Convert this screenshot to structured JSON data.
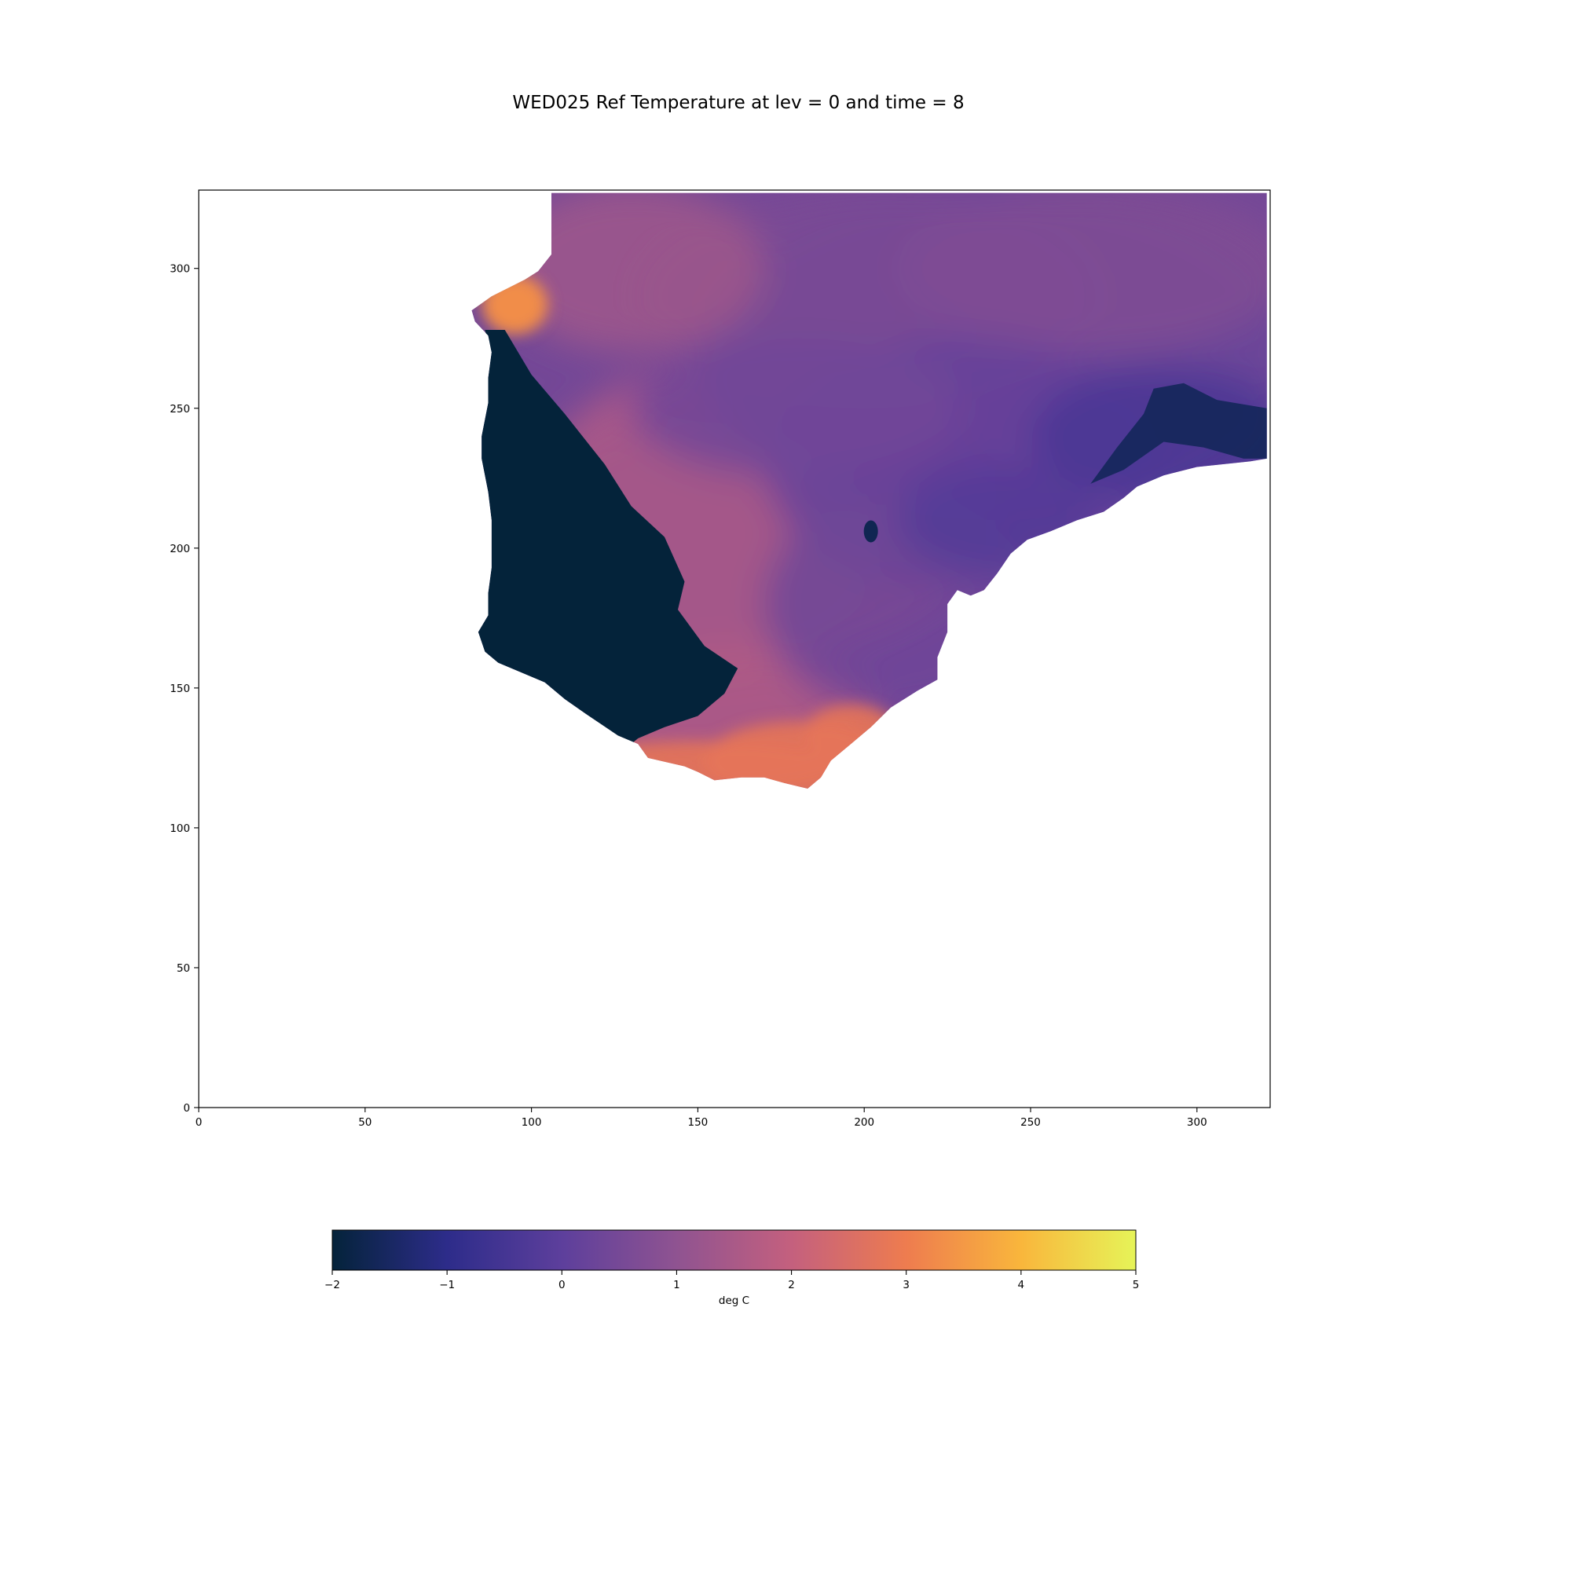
{
  "chart_data": {
    "type": "heatmap",
    "title": "WED025 Ref Temperature at lev = 0 and time = 8",
    "xlim": [
      0,
      322
    ],
    "ylim": [
      0,
      328
    ],
    "x_ticks": [
      0,
      50,
      100,
      150,
      200,
      250,
      300
    ],
    "y_ticks": [
      0,
      50,
      100,
      150,
      200,
      250,
      300
    ],
    "colormap": "thermal",
    "colorbar": {
      "orientation": "horizontal",
      "label": "deg C",
      "vmin": -2,
      "vmax": 5,
      "ticks": [
        -2,
        -1,
        0,
        1,
        2,
        3,
        4,
        5
      ],
      "tick_labels": [
        "−2",
        "−1",
        "0",
        "1",
        "2",
        "3",
        "4",
        "5"
      ]
    },
    "regions": [
      {
        "name": "ocean",
        "value_range": [
          -0.5,
          1.5
        ]
      },
      {
        "name": "cold-shelf-west",
        "value": -2.0
      },
      {
        "name": "cold-coastal-east",
        "value": -1.6
      },
      {
        "name": "warm-northwest-corner",
        "value": 3.3
      },
      {
        "name": "warm-southern-coast",
        "value": 2.8
      }
    ],
    "colors": {
      "stop_-2": "#04233a",
      "stop_-1": "#2d2c8a",
      "stop_0": "#5d3f9c",
      "stop_1": "#8f5391",
      "stop_2": "#c4607e",
      "stop_3": "#ee7c4f",
      "stop_4": "#f9b63c",
      "stop_5": "#e6f458"
    }
  }
}
